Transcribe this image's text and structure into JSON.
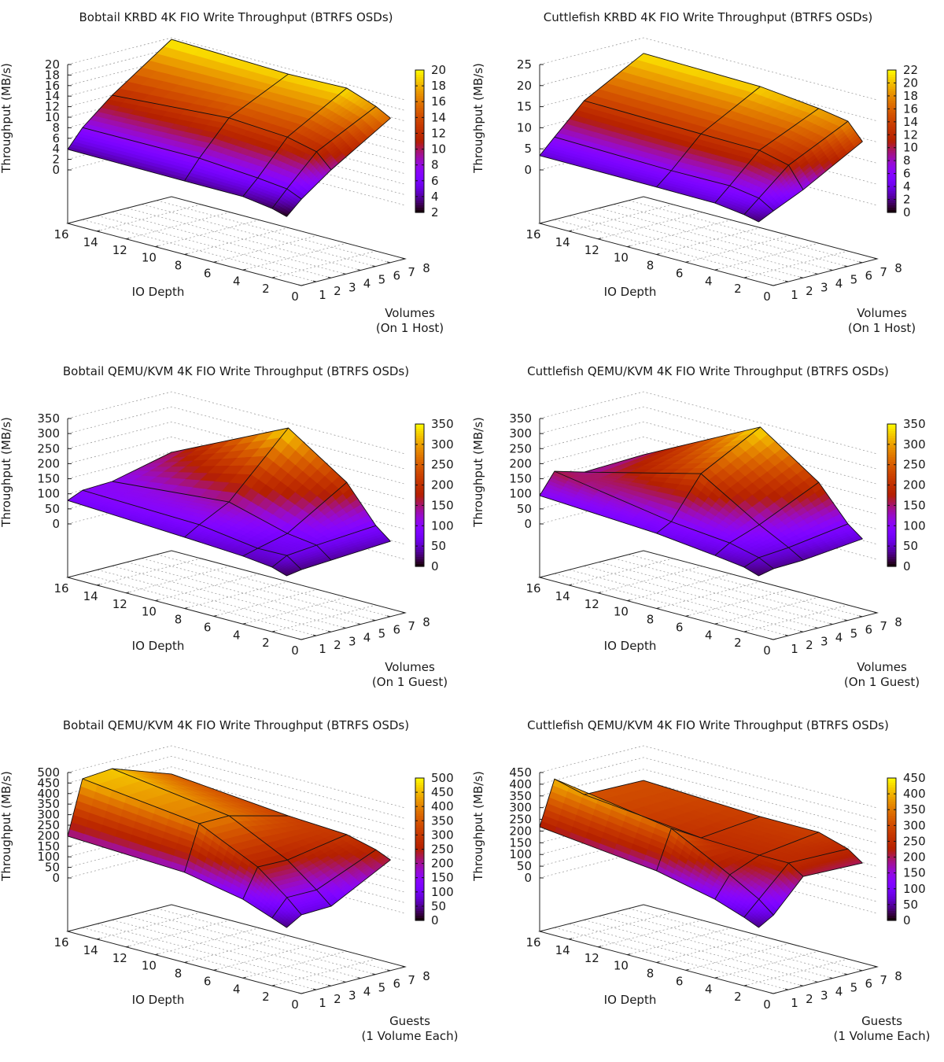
{
  "palette": {
    "name": "gnuplot rgbformulae 7,5,15",
    "stops": [
      "#000000",
      "#7f00ff",
      "#c42000",
      "#ffe000"
    ]
  },
  "chart_data": [
    {
      "type": "surface3d",
      "title": "Bobtail KRBD 4K FIO Write Throughput (BTRFS OSDs)",
      "xlabel": "IO Depth",
      "ylabel": [
        "Volumes",
        "(On 1 Host)"
      ],
      "zlabel": "Throughput (MB/s)",
      "x_ticks": [
        "0",
        "2",
        "4",
        "6",
        "8",
        "10",
        "12",
        "14",
        "16"
      ],
      "y_ticks": [
        "1",
        "2",
        "3",
        "4",
        "5",
        "6",
        "7",
        "8"
      ],
      "z_ticks": [
        "0",
        "2",
        "4",
        "6",
        "8",
        "10",
        "12",
        "14",
        "16",
        "18",
        "20"
      ],
      "zlim": [
        0,
        20
      ],
      "cb_ticks": [
        "2",
        "4",
        "6",
        "8",
        "10",
        "12",
        "14",
        "16",
        "18",
        "20"
      ],
      "cblim": [
        2,
        20
      ],
      "io_depths": [
        1,
        2,
        4,
        8,
        16
      ],
      "series": [
        {
          "name": "1",
          "volumes": 1,
          "values": [
            2.2,
            3.0,
            3.8,
            3.8,
            3.9
          ]
        },
        {
          "name": "2",
          "volumes": 2,
          "values": [
            4.8,
            6.0,
            6.6,
            7.4,
            7.3
          ]
        },
        {
          "name": "4",
          "volumes": 4,
          "values": [
            8.9,
            11.6,
            12.9,
            13.6,
            12.0
          ]
        },
        {
          "name": "8",
          "volumes": 8,
          "values": [
            15.8,
            17.3,
            19.3,
            19.0,
            19.7
          ]
        }
      ]
    },
    {
      "type": "surface3d",
      "title": "Cuttlefish KRBD 4K FIO Write Throughput (BTRFS OSDs)",
      "xlabel": "IO Depth",
      "ylabel": [
        "Volumes",
        "(On 1 Host)"
      ],
      "zlabel": "Throughput (MB/s)",
      "x_ticks": [
        "0",
        "2",
        "4",
        "6",
        "8",
        "10",
        "12",
        "14",
        "16"
      ],
      "y_ticks": [
        "1",
        "2",
        "3",
        "4",
        "5",
        "6",
        "7",
        "8"
      ],
      "z_ticks": [
        "0",
        "5",
        "10",
        "15",
        "20",
        "25"
      ],
      "zlim": [
        0,
        25
      ],
      "cb_ticks": [
        "0",
        "2",
        "4",
        "6",
        "8",
        "10",
        "12",
        "14",
        "16",
        "18",
        "20",
        "22"
      ],
      "cblim": [
        0,
        22
      ],
      "io_depths": [
        1,
        2,
        4,
        8,
        16
      ],
      "series": [
        {
          "name": "1",
          "volumes": 1,
          "values": [
            1.5,
            2.3,
            3.2,
            3.3,
            3.4
          ]
        },
        {
          "name": "2",
          "volumes": 2,
          "values": [
            3.2,
            5.3,
            6.4,
            6.3,
            6.9
          ]
        },
        {
          "name": "4",
          "volumes": 4,
          "values": [
            6.4,
            11.3,
            13.0,
            13.2,
            13.7
          ]
        },
        {
          "name": "8",
          "volumes": 8,
          "values": [
            14.2,
            18.1,
            19.3,
            20.8,
            21.3
          ]
        }
      ]
    },
    {
      "type": "surface3d",
      "title": "Bobtail QEMU/KVM 4K FIO Write Throughput (BTRFS OSDs)",
      "xlabel": "IO Depth",
      "ylabel": [
        "Volumes",
        "(On 1 Guest)"
      ],
      "zlabel": "Throughput (MB/s)",
      "x_ticks": [
        "0",
        "2",
        "4",
        "6",
        "8",
        "10",
        "12",
        "14",
        "16"
      ],
      "y_ticks": [
        "1",
        "2",
        "3",
        "4",
        "5",
        "6",
        "7",
        "8"
      ],
      "z_ticks": [
        "0",
        "50",
        "100",
        "150",
        "200",
        "250",
        "300",
        "350"
      ],
      "zlim": [
        0,
        350
      ],
      "cb_ticks": [
        "0",
        "50",
        "100",
        "150",
        "200",
        "250",
        "300",
        "350"
      ],
      "cblim": [
        0,
        350
      ],
      "io_depths": [
        1,
        2,
        4,
        8,
        16
      ],
      "series": [
        {
          "name": "1",
          "volumes": 1,
          "values": [
            21,
            37,
            48,
            59,
            78
          ]
        },
        {
          "name": "2",
          "volumes": 2,
          "values": [
            29,
            63,
            61,
            88,
            99
          ]
        },
        {
          "name": "4",
          "volumes": 4,
          "values": [
            35,
            72,
            85,
            138,
            103
          ]
        },
        {
          "name": "8",
          "volumes": 8,
          "values": [
            47,
            86,
            204,
            333,
            149
          ]
        }
      ]
    },
    {
      "type": "surface3d",
      "title": "Cuttlefish QEMU/KVM 4K FIO Write Throughput (BTRFS OSDs)",
      "xlabel": "IO Depth",
      "ylabel": [
        "Volumes",
        "(On 1 Guest)"
      ],
      "zlabel": "Throughput (MB/s)",
      "x_ticks": [
        "0",
        "2",
        "4",
        "6",
        "8",
        "10",
        "12",
        "14",
        "16"
      ],
      "y_ticks": [
        "1",
        "2",
        "3",
        "4",
        "5",
        "6",
        "7",
        "8"
      ],
      "z_ticks": [
        "0",
        "50",
        "100",
        "150",
        "200",
        "250",
        "300",
        "350"
      ],
      "zlim": [
        0,
        350
      ],
      "cb_ticks": [
        "0",
        "50",
        "100",
        "150",
        "200",
        "250",
        "300",
        "350"
      ],
      "cblim": [
        0,
        350
      ],
      "io_depths": [
        1,
        2,
        4,
        8,
        16
      ],
      "series": [
        {
          "name": "1",
          "volumes": 1,
          "values": [
            21,
            37,
            50,
            72,
            94
          ]
        },
        {
          "name": "2",
          "volumes": 2,
          "values": [
            32,
            56,
            79,
            98,
            162
          ]
        },
        {
          "name": "4",
          "volumes": 4,
          "values": [
            35,
            64,
            114,
            232,
            134
          ]
        },
        {
          "name": "8",
          "volumes": 8,
          "values": [
            55,
            92,
            204,
            336,
            141
          ]
        }
      ]
    },
    {
      "type": "surface3d",
      "title": "Bobtail QEMU/KVM 4K FIO Write Throughput (BTRFS OSDs)",
      "xlabel": "IO Depth",
      "ylabel": [
        "Guests",
        "(1 Volume Each)"
      ],
      "zlabel": "Throughput (MB/s)",
      "x_ticks": [
        "0",
        "2",
        "4",
        "6",
        "8",
        "10",
        "12",
        "14",
        "16"
      ],
      "y_ticks": [
        "1",
        "2",
        "3",
        "4",
        "5",
        "6",
        "7",
        "8"
      ],
      "z_ticks": [
        "0",
        "50",
        "100",
        "150",
        "200",
        "250",
        "300",
        "350",
        "400",
        "450",
        "500"
      ],
      "zlim": [
        0,
        500
      ],
      "cb_ticks": [
        "0",
        "50",
        "100",
        "150",
        "200",
        "250",
        "300",
        "350",
        "400",
        "450",
        "500"
      ],
      "cblim": [
        0,
        500
      ],
      "io_depths": [
        1,
        2,
        4,
        8,
        16
      ],
      "series": [
        {
          "name": "1",
          "guests": 1,
          "values": [
            41,
            68,
            120,
            174,
            198
          ]
        },
        {
          "name": "2",
          "guests": 2,
          "values": [
            83,
            147,
            255,
            387,
            452
          ]
        },
        {
          "name": "4",
          "guests": 4,
          "values": [
            88,
            147,
            252,
            388,
            464
          ]
        },
        {
          "name": "8",
          "guests": 8,
          "values": [
            235,
            265,
            300,
            315,
            366
          ]
        }
      ]
    },
    {
      "type": "surface3d",
      "title": "Cuttlefish QEMU/KVM 4K FIO Write Throughput (BTRFS OSDs)",
      "xlabel": "IO Depth",
      "ylabel": [
        "Guests",
        "(1 Volume Each)"
      ],
      "zlabel": "Throughput (MB/s)",
      "x_ticks": [
        "0",
        "2",
        "4",
        "6",
        "8",
        "10",
        "12",
        "14",
        "16"
      ],
      "y_ticks": [
        "1",
        "2",
        "3",
        "4",
        "5",
        "6",
        "7",
        "8"
      ],
      "z_ticks": [
        "0",
        "50",
        "100",
        "150",
        "200",
        "250",
        "300",
        "350",
        "400",
        "450"
      ],
      "zlim": [
        0,
        450
      ],
      "cb_ticks": [
        "0",
        "50",
        "100",
        "150",
        "200",
        "250",
        "300",
        "350",
        "400",
        "450"
      ],
      "cblim": [
        0,
        450
      ],
      "io_depths": [
        1,
        2,
        4,
        8,
        16
      ],
      "series": [
        {
          "name": "1",
          "guests": 1,
          "values": [
            37,
            64,
            108,
            163,
            218
          ]
        },
        {
          "name": "2",
          "guests": 2,
          "values": [
            74,
            125,
            196,
            328,
            406
          ]
        },
        {
          "name": "4",
          "guests": 4,
          "values": [
            206,
            247,
            247,
            255,
            307
          ]
        },
        {
          "name": "8",
          "guests": 8,
          "values": [
            198,
            242,
            280,
            280,
            302
          ]
        }
      ]
    }
  ]
}
